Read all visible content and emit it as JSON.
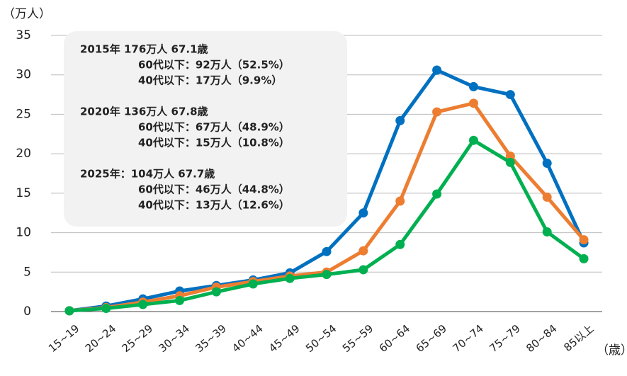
{
  "chart_data": {
    "type": "line",
    "y_label": "（万人）",
    "x_label": "（歳）",
    "categories": [
      "15~19",
      "20~24",
      "25~29",
      "30~34",
      "35~39",
      "40~44",
      "45~49",
      "50~54",
      "55~59",
      "60~64",
      "65~69",
      "70~74",
      "75~79",
      "80~84",
      "85以上"
    ],
    "series": [
      {
        "color": "#0070c0",
        "values": [
          0.1,
          0.7,
          1.6,
          2.6,
          3.3,
          4.0,
          4.9,
          7.6,
          12.5,
          24.2,
          30.6,
          28.5,
          27.5,
          18.8,
          8.7
        ]
      },
      {
        "color": "#ed7d31",
        "values": [
          0.1,
          0.5,
          1.2,
          2.0,
          3.1,
          3.8,
          4.5,
          5.0,
          7.7,
          14.0,
          25.3,
          26.4,
          19.7,
          14.5,
          9.1
        ]
      },
      {
        "color": "#00b050",
        "values": [
          0.1,
          0.4,
          0.9,
          1.4,
          2.5,
          3.5,
          4.2,
          4.7,
          5.3,
          8.5,
          14.9,
          21.7,
          18.9,
          10.1,
          6.7
        ]
      }
    ],
    "ylim": [
      0,
      35
    ],
    "yticks": [
      0,
      5,
      10,
      15,
      20,
      25,
      30,
      35
    ],
    "grid": true,
    "annotations": [
      {
        "color": "#0070c0",
        "lines": [
          "2015年  176万人  67.1歳",
          "60代以下：92万人（52.5%）",
          "40代以下：17万人（9.9%）"
        ]
      },
      {
        "color": "#ed7d31",
        "lines": [
          "2020年  136万人  67.8歳",
          "60代以下：67万人（48.9%）",
          "40代以下：15万人（10.8%）"
        ]
      },
      {
        "color": "#00b050",
        "lines": [
          "2025年：104万人  67.7歳",
          "60代以下：46万人（44.8%）",
          "40代以下：13万人（12.6%）"
        ]
      }
    ]
  }
}
